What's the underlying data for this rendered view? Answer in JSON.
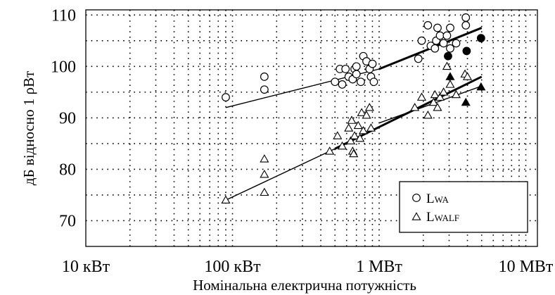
{
  "chart_data": {
    "type": "scatter",
    "title": "",
    "xlabel": "Номінальна електрична потужність",
    "ylabel": "дБ відносно 1 ρВт",
    "x_scale": "log",
    "x_unit": "kW",
    "xlim_kW": [
      10,
      12000
    ],
    "ylim": [
      65,
      111
    ],
    "x_ticks": [
      {
        "value_kW": 10,
        "label": "10 кВт"
      },
      {
        "value_kW": 100,
        "label": "100 кВт"
      },
      {
        "value_kW": 1000,
        "label": "1 МВт"
      },
      {
        "value_kW": 10000,
        "label": "10 МВт"
      }
    ],
    "y_ticks": [
      70,
      80,
      90,
      100,
      110
    ],
    "grid": "dotted",
    "legend_position": "bottom-right",
    "legend": [
      {
        "marker": "circle",
        "main": "L",
        "sub": "WA"
      },
      {
        "marker": "triangle",
        "main": "L",
        "sub": "WALF"
      }
    ],
    "series": [
      {
        "name": "LWA",
        "marker": "circle",
        "points": [
          [
            90,
            94
          ],
          [
            165,
            98
          ],
          [
            165,
            95.5
          ],
          [
            500,
            97
          ],
          [
            540,
            99.5
          ],
          [
            560,
            96.5
          ],
          [
            590,
            99.5
          ],
          [
            620,
            98
          ],
          [
            660,
            97.5
          ],
          [
            680,
            99.5
          ],
          [
            700,
            100
          ],
          [
            700,
            98.5
          ],
          [
            750,
            97
          ],
          [
            780,
            102
          ],
          [
            820,
            101
          ],
          [
            860,
            99.5
          ],
          [
            880,
            98
          ],
          [
            900,
            100.5
          ],
          [
            920,
            97
          ],
          [
            1850,
            101.5
          ],
          [
            1950,
            105
          ],
          [
            2150,
            108
          ],
          [
            2250,
            104
          ],
          [
            2400,
            103.5
          ],
          [
            2450,
            105
          ],
          [
            2500,
            107.5
          ],
          [
            2600,
            106
          ],
          [
            2750,
            104.5
          ],
          [
            2900,
            106
          ],
          [
            3050,
            103.5
          ],
          [
            3050,
            107.5
          ],
          [
            3350,
            104.5
          ],
          [
            3900,
            109.5
          ],
          [
            3900,
            108
          ]
        ]
      },
      {
        "name": "LWA (filled)",
        "marker": "circle-filled",
        "points": [
          [
            2950,
            102
          ],
          [
            3950,
            103
          ],
          [
            4950,
            105.5
          ]
        ]
      },
      {
        "name": "LWALF",
        "marker": "triangle",
        "points": [
          [
            90,
            74
          ],
          [
            165,
            82
          ],
          [
            165,
            79
          ],
          [
            165,
            75.5
          ],
          [
            460,
            83.5
          ],
          [
            520,
            86.5
          ],
          [
            560,
            84.5
          ],
          [
            620,
            88
          ],
          [
            640,
            85.5
          ],
          [
            650,
            89.5
          ],
          [
            660,
            83.5
          ],
          [
            670,
            83
          ],
          [
            680,
            86.5
          ],
          [
            720,
            88.5
          ],
          [
            740,
            86
          ],
          [
            760,
            91
          ],
          [
            780,
            87.5
          ],
          [
            820,
            90.5
          ],
          [
            860,
            92
          ],
          [
            880,
            88
          ],
          [
            1750,
            92
          ],
          [
            1950,
            94
          ],
          [
            2150,
            90.5
          ],
          [
            2350,
            93
          ],
          [
            2400,
            94.5
          ],
          [
            2500,
            92
          ],
          [
            2600,
            94
          ],
          [
            2750,
            95
          ],
          [
            2900,
            100
          ],
          [
            3050,
            96.5
          ],
          [
            3350,
            94.5
          ],
          [
            3850,
            98.5
          ],
          [
            4000,
            98
          ]
        ]
      },
      {
        "name": "LWALF (filled)",
        "marker": "triangle-filled",
        "points": [
          [
            3050,
            98
          ],
          [
            3900,
            93
          ],
          [
            4950,
            96
          ]
        ]
      }
    ],
    "trend_lines": [
      {
        "name": "LWA fit (thin)",
        "from": [
          90,
          92
        ],
        "to": [
          1000,
          99.5
        ],
        "width": "thin"
      },
      {
        "name": "LWA fit (thick)",
        "from": [
          1000,
          99.5
        ],
        "to": [
          5000,
          107.5
        ],
        "width": "thick"
      },
      {
        "name": "LWALF fit (thin)",
        "from": [
          90,
          74
        ],
        "to": [
          500,
          84
        ],
        "width": "thin"
      },
      {
        "name": "LWALF fit (thick)",
        "from": [
          500,
          84
        ],
        "to": [
          5000,
          98
        ],
        "width": "thick"
      },
      {
        "name": "LWALF fit (parallel)",
        "from": [
          1000,
          89
        ],
        "to": [
          4800,
          96
        ],
        "width": "thin"
      }
    ]
  }
}
